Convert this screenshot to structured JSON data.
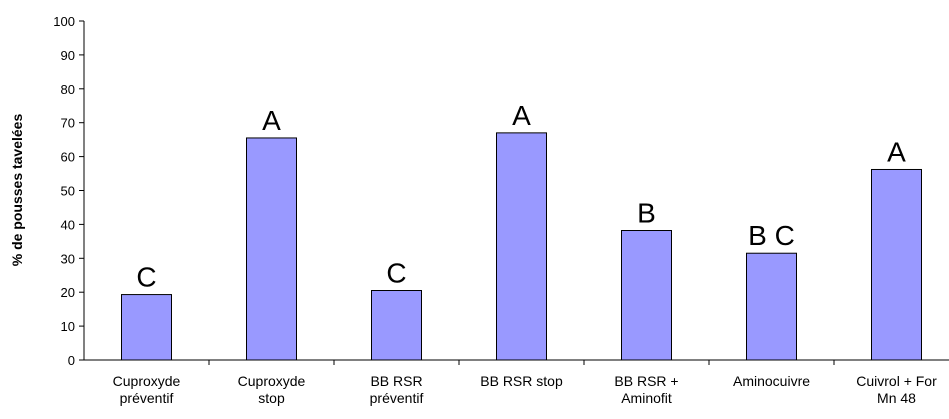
{
  "chart_data": {
    "type": "bar",
    "ylabel": "% de pousses tavelées",
    "xlabel": "",
    "ylim": [
      0,
      100
    ],
    "yticks": [
      0,
      10,
      20,
      30,
      40,
      50,
      60,
      70,
      80,
      90,
      100
    ],
    "categories": [
      [
        "Cuproxyde",
        "préventif"
      ],
      [
        "Cuproxyde",
        "stop"
      ],
      [
        "BB RSR",
        "préventif"
      ],
      [
        "BB RSR stop"
      ],
      [
        "BB RSR +",
        "Aminofit"
      ],
      [
        "Aminocuivre"
      ],
      [
        "Cuivrol + For",
        "Mn 48"
      ]
    ],
    "values": [
      19.3,
      65.5,
      20.5,
      67,
      38.2,
      31.5,
      56.2
    ],
    "letters": [
      "C",
      "A",
      "C",
      "A",
      "B",
      "B C",
      "A"
    ],
    "bar_color": "#9999ff",
    "grid": false,
    "legend": "none"
  }
}
